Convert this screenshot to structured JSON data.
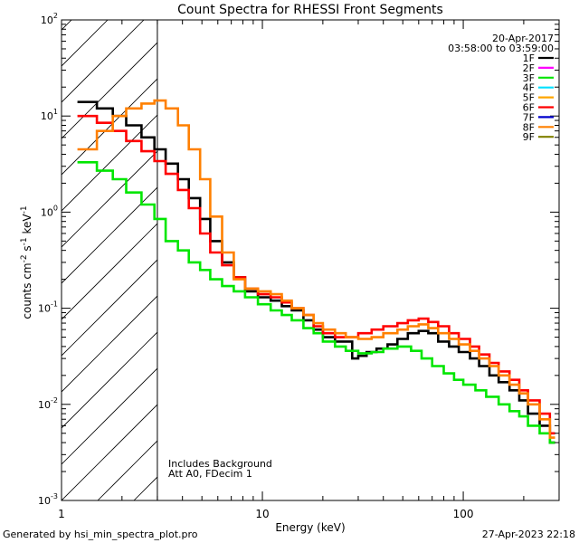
{
  "chart_data": {
    "type": "line",
    "title": "Count Spectra for RHESSI Front Segments",
    "xlabel": "Energy (keV)",
    "ylabel_main": "counts cm",
    "ylabel_sup1": "-2",
    "ylabel_mid": " s",
    "ylabel_sup2": "-1",
    "ylabel_end": " keV",
    "ylabel_sup3": "-1",
    "xscale": "log",
    "yscale": "log",
    "xlim": [
      1,
      300
    ],
    "ylim": [
      0.001,
      100
    ],
    "x_ticks": [
      {
        "value": 1,
        "label": "1"
      },
      {
        "value": 10,
        "label": "10"
      },
      {
        "value": 100,
        "label": "100"
      }
    ],
    "y_ticks": [
      {
        "value": 0.001,
        "base": "10",
        "exp": "-3"
      },
      {
        "value": 0.01,
        "base": "10",
        "exp": "-2"
      },
      {
        "value": 0.1,
        "base": "10",
        "exp": "-1"
      },
      {
        "value": 1,
        "base": "10",
        "exp": "0"
      },
      {
        "value": 10,
        "base": "10",
        "exp": "1"
      },
      {
        "value": 100,
        "base": "10",
        "exp": "2"
      }
    ],
    "shaded_region": {
      "x_from": 1,
      "x_to": 3,
      "pattern": "diagonal-hatch"
    },
    "date": "20-Apr-2017",
    "time_range": "03:58:00 to 03:59:00",
    "annotation_lines": [
      "Includes Background",
      "Att A0, FDecim 1"
    ],
    "legend_position": "top-right",
    "legend": [
      {
        "name": "1F",
        "color": "#000000"
      },
      {
        "name": "2F",
        "color": "#ff00ff"
      },
      {
        "name": "3F",
        "color": "#00e600"
      },
      {
        "name": "4F",
        "color": "#00e0ff"
      },
      {
        "name": "5F",
        "color": "#ffa500"
      },
      {
        "name": "6F",
        "color": "#ff0000"
      },
      {
        "name": "7F",
        "color": "#0000cc"
      },
      {
        "name": "8F",
        "color": "#ff8000"
      },
      {
        "name": "9F",
        "color": "#808000"
      }
    ],
    "series": [
      {
        "name": "1F",
        "color": "#000000",
        "x": [
          1.2,
          1.5,
          1.8,
          2.1,
          2.5,
          2.9,
          3.3,
          3.8,
          4.3,
          4.9,
          5.5,
          6.3,
          7.2,
          8.2,
          9.5,
          11,
          12.5,
          14,
          16,
          18,
          20,
          23,
          26,
          28,
          30,
          33,
          37,
          42,
          47,
          53,
          60,
          67,
          75,
          85,
          95,
          108,
          120,
          135,
          150,
          170,
          190,
          210,
          240,
          270
        ],
        "y": [
          14,
          12,
          10,
          8,
          6,
          4.5,
          3.2,
          2.2,
          1.4,
          0.85,
          0.5,
          0.3,
          0.21,
          0.15,
          0.13,
          0.12,
          0.105,
          0.095,
          0.075,
          0.06,
          0.05,
          0.045,
          0.045,
          0.03,
          0.032,
          0.035,
          0.038,
          0.042,
          0.048,
          0.055,
          0.058,
          0.055,
          0.045,
          0.04,
          0.035,
          0.03,
          0.025,
          0.02,
          0.017,
          0.014,
          0.011,
          0.008,
          0.006,
          0.004
        ]
      },
      {
        "name": "3F",
        "color": "#00e600",
        "x": [
          1.2,
          1.5,
          1.8,
          2.1,
          2.5,
          2.9,
          3.3,
          3.8,
          4.3,
          4.9,
          5.5,
          6.3,
          7.2,
          8.2,
          9.5,
          11,
          12.5,
          14,
          16,
          18,
          20,
          23,
          26,
          30,
          35,
          40,
          47,
          55,
          62,
          70,
          80,
          90,
          100,
          115,
          130,
          150,
          170,
          190,
          210,
          240,
          270
        ],
        "y": [
          3.3,
          2.7,
          2.2,
          1.6,
          1.2,
          0.85,
          0.5,
          0.4,
          0.3,
          0.25,
          0.2,
          0.17,
          0.15,
          0.13,
          0.11,
          0.095,
          0.085,
          0.075,
          0.062,
          0.055,
          0.045,
          0.04,
          0.036,
          0.034,
          0.035,
          0.038,
          0.04,
          0.036,
          0.03,
          0.025,
          0.021,
          0.018,
          0.016,
          0.014,
          0.012,
          0.01,
          0.0085,
          0.0075,
          0.006,
          0.005,
          0.004
        ]
      },
      {
        "name": "6F",
        "color": "#ff0000",
        "x": [
          1.2,
          1.5,
          1.8,
          2.1,
          2.5,
          2.9,
          3.3,
          3.8,
          4.3,
          4.9,
          5.5,
          6.3,
          7.2,
          8.2,
          9.5,
          11,
          12.5,
          14,
          16,
          18,
          20,
          23,
          26,
          30,
          35,
          40,
          47,
          53,
          60,
          67,
          75,
          85,
          95,
          108,
          120,
          135,
          150,
          170,
          190,
          210,
          240,
          270
        ],
        "y": [
          10,
          8.5,
          7,
          5.5,
          4.3,
          3.4,
          2.5,
          1.7,
          1.1,
          0.6,
          0.38,
          0.28,
          0.21,
          0.16,
          0.14,
          0.13,
          0.115,
          0.1,
          0.085,
          0.065,
          0.055,
          0.05,
          0.05,
          0.055,
          0.06,
          0.065,
          0.07,
          0.075,
          0.078,
          0.072,
          0.065,
          0.055,
          0.048,
          0.04,
          0.033,
          0.027,
          0.022,
          0.018,
          0.014,
          0.011,
          0.008,
          0.005
        ]
      },
      {
        "name": "8F",
        "color": "#ff8000",
        "x": [
          1.2,
          1.5,
          1.8,
          2.1,
          2.5,
          2.9,
          3.3,
          3.8,
          4.3,
          4.9,
          5.5,
          6.3,
          7.2,
          8.2,
          9.5,
          11,
          12.5,
          14,
          16,
          18,
          20,
          23,
          26,
          30,
          35,
          40,
          47,
          53,
          60,
          67,
          75,
          85,
          95,
          108,
          120,
          135,
          150,
          170,
          190,
          210,
          240,
          270
        ],
        "y": [
          4.5,
          7,
          10,
          12,
          13.5,
          14.5,
          12,
          8,
          4.5,
          2.2,
          0.9,
          0.38,
          0.2,
          0.16,
          0.15,
          0.14,
          0.12,
          0.1,
          0.085,
          0.07,
          0.06,
          0.055,
          0.05,
          0.048,
          0.05,
          0.055,
          0.06,
          0.065,
          0.068,
          0.062,
          0.055,
          0.048,
          0.042,
          0.036,
          0.03,
          0.025,
          0.02,
          0.016,
          0.013,
          0.01,
          0.007,
          0.0045
        ]
      }
    ]
  },
  "footer": {
    "generated_by": "Generated by hsi_min_spectra_plot.pro",
    "timestamp": "27-Apr-2023 22:18"
  }
}
